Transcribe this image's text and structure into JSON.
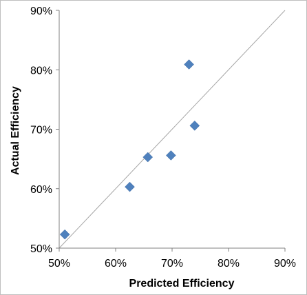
{
  "chart_data": {
    "type": "scatter",
    "xlabel": "Predicted Efficiency",
    "ylabel": "Actual Efficiency",
    "xlim": [
      0.5,
      0.9
    ],
    "ylim": [
      0.5,
      0.9
    ],
    "x_ticks": [
      "50%",
      "60%",
      "70%",
      "80%",
      "90%"
    ],
    "y_ticks": [
      "50%",
      "60%",
      "70%",
      "80%",
      "90%"
    ],
    "grid": false,
    "legend": "none",
    "marker": "diamond",
    "marker_color": "#4F81BD",
    "reference_line": {
      "from": [
        0.5,
        0.5
      ],
      "to": [
        0.9,
        0.9
      ],
      "color": "#A6A6A6"
    },
    "points": [
      {
        "x": 0.51,
        "y": 0.523
      },
      {
        "x": 0.625,
        "y": 0.603
      },
      {
        "x": 0.657,
        "y": 0.653
      },
      {
        "x": 0.698,
        "y": 0.656
      },
      {
        "x": 0.73,
        "y": 0.809
      },
      {
        "x": 0.74,
        "y": 0.706
      }
    ]
  }
}
